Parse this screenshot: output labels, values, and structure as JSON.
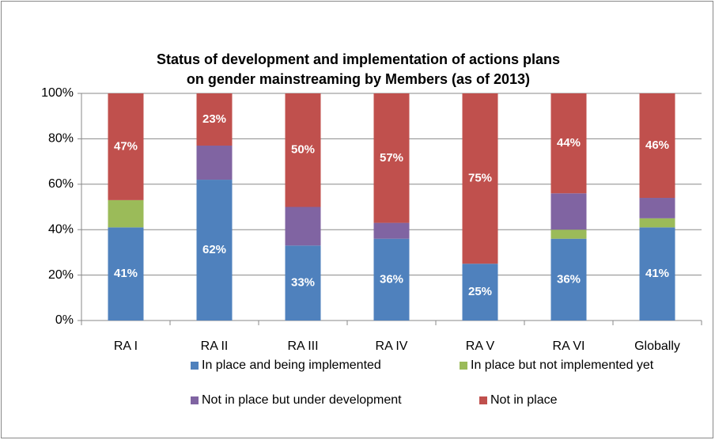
{
  "chart_data": {
    "type": "stacked_bar",
    "title": [
      "Status of development and implementation of actions plans",
      "on gender mainstreaming by Members (as of 2013)"
    ],
    "categories": [
      "RA I",
      "RA II",
      "RA III",
      "RA IV",
      "RA V",
      "RA VI",
      "Globally"
    ],
    "series": [
      {
        "name": "In place and being implemented",
        "color": "#4f81bd",
        "values": [
          41,
          62,
          33,
          36,
          25,
          36,
          41
        ],
        "value_labels": [
          "41%",
          "62%",
          "33%",
          "36%",
          "25%",
          "36%",
          "41%"
        ]
      },
      {
        "name": "In place but not implemented yet",
        "color": "#9bbb59",
        "values": [
          12,
          0,
          0,
          0,
          0,
          4,
          4
        ]
      },
      {
        "name": "Not in place but under development",
        "color": "#8064a2",
        "values": [
          0,
          15,
          17,
          7,
          0,
          16,
          9
        ]
      },
      {
        "name": "Not in place",
        "color": "#c0504d",
        "values": [
          47,
          23,
          50,
          57,
          75,
          44,
          46
        ],
        "value_labels": [
          "47%",
          "23%",
          "50%",
          "57%",
          "75%",
          "44%",
          "46%"
        ]
      }
    ],
    "ylim": [
      0,
      100
    ],
    "yticks": [
      {
        "value": 0,
        "label": "0%"
      },
      {
        "value": 20,
        "label": "20%"
      },
      {
        "value": 40,
        "label": "40%"
      },
      {
        "value": 60,
        "label": "60%"
      },
      {
        "value": 80,
        "label": "80%"
      },
      {
        "value": 100,
        "label": "100%"
      }
    ],
    "grid": true
  }
}
